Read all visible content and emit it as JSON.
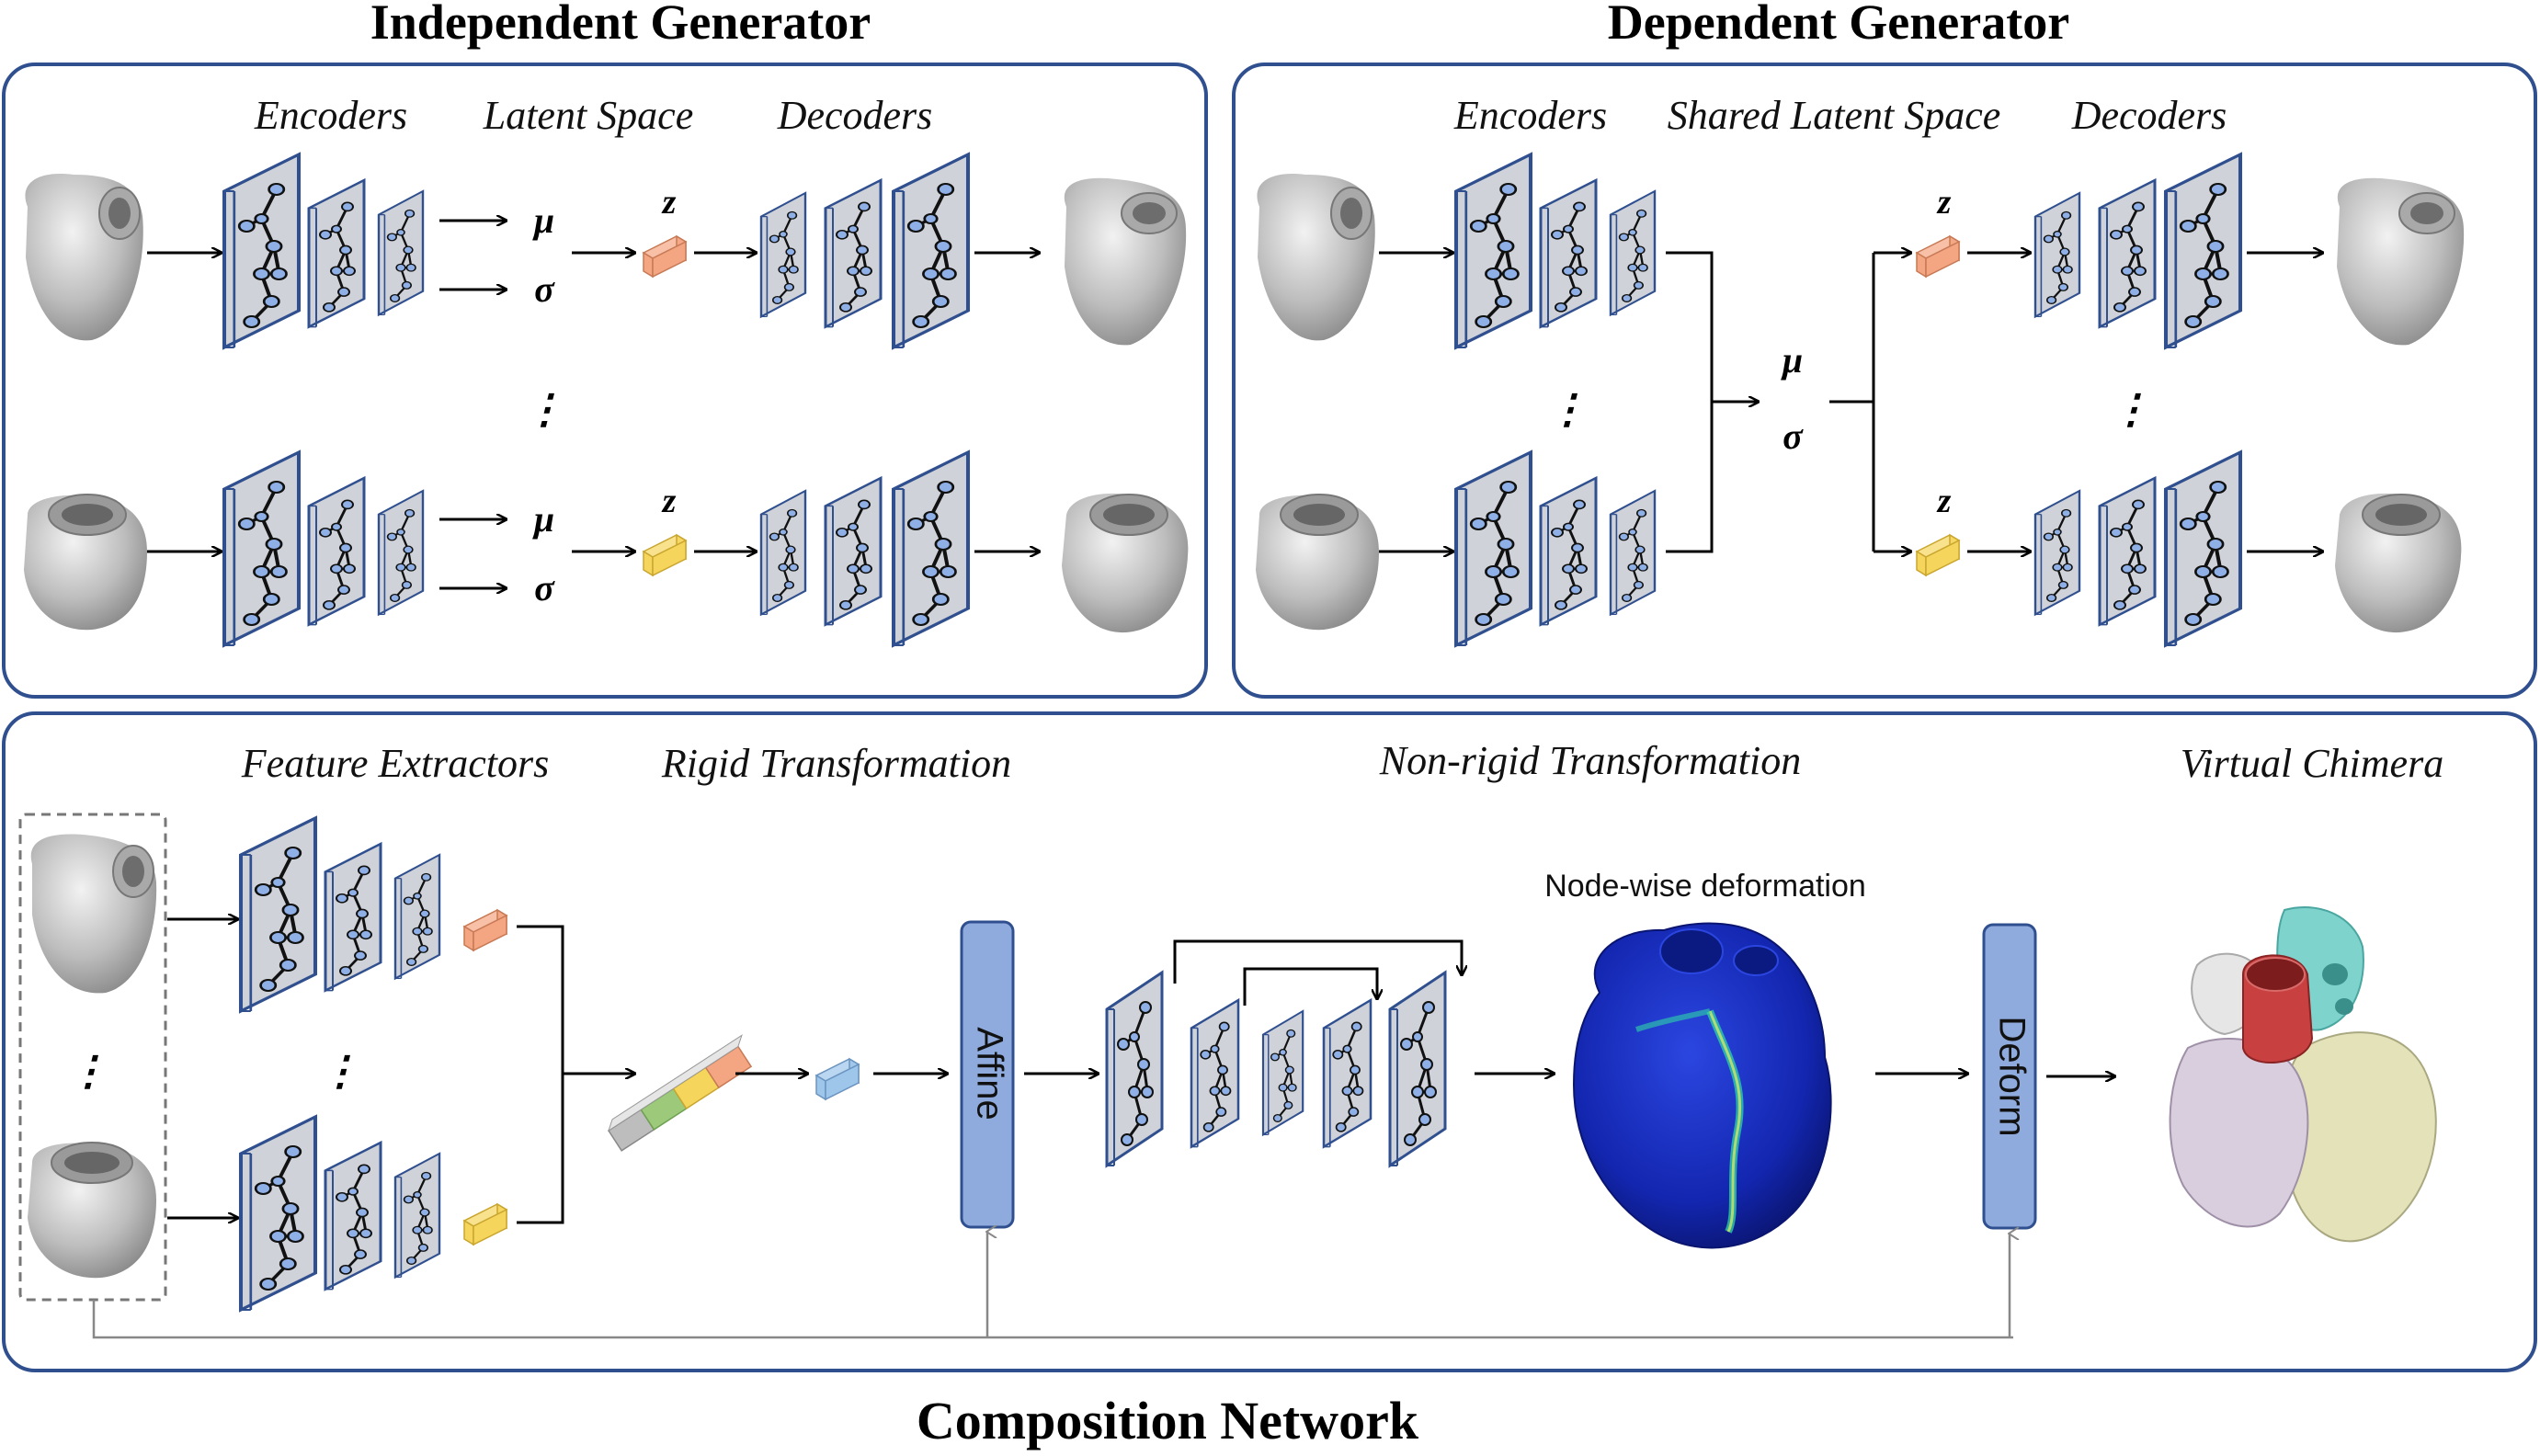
{
  "titles": {
    "independent": "Independent Generator",
    "dependent": "Dependent Generator",
    "composition": "Composition Network"
  },
  "independent": {
    "encoders": "Encoders",
    "latent": "Latent Space",
    "decoders": "Decoders",
    "mu": "μ",
    "sigma": "σ",
    "z": "z",
    "dots": "⋮"
  },
  "dependent": {
    "encoders": "Encoders",
    "latent": "Shared Latent Space",
    "decoders": "Decoders",
    "mu": "μ",
    "sigma": "σ",
    "z": "z",
    "dots": "⋮"
  },
  "composition": {
    "feature_extractors": "Feature Extractors",
    "rigid": "Rigid Transformation",
    "nonrigid": "Non-rigid Transformation",
    "chimera": "Virtual Chimera",
    "node_deformation": "Node-wise deformation",
    "affine": "Affine",
    "deform": "Deform",
    "dots": "⋮"
  },
  "colors": {
    "panel_border": "#2f4f8f",
    "gcn_plate": "#cfd2d8",
    "gcn_edge": "#2f4f8f",
    "node": "#8fb0e6",
    "latent_orange": "#f4a582",
    "latent_yellow": "#f6d55c",
    "latent_blue": "#9ec5ea",
    "latent_green": "#9cc97a",
    "latent_gray": "#bdbdbd",
    "module_blue": "#8faadc",
    "mesh_gray": "#bfbfbf",
    "field_blue": "#1a2db8"
  }
}
